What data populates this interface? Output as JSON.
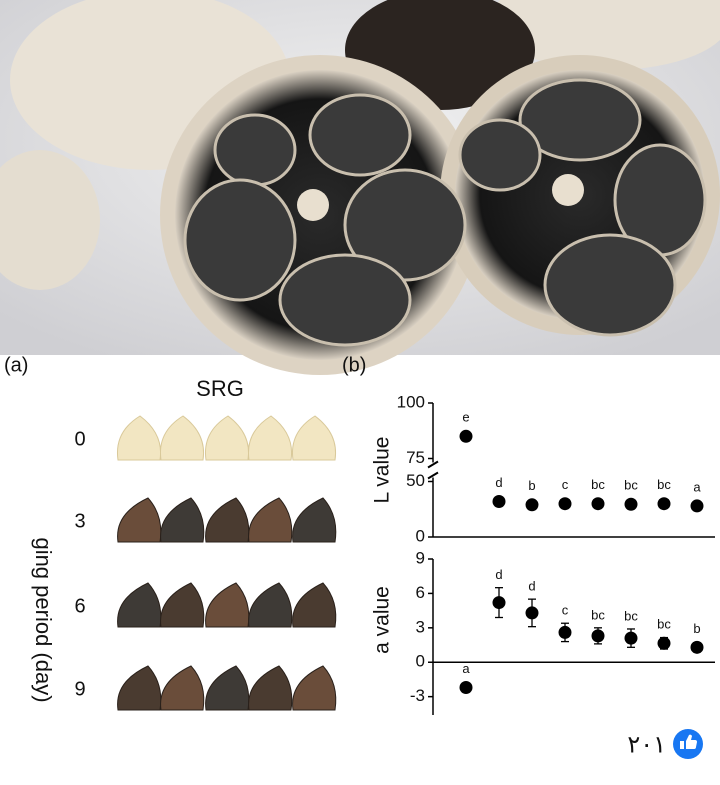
{
  "panel_a": {
    "label": "(a)",
    "title": "SRG",
    "y_axis_label": "ging period (day)",
    "rows": [
      "0",
      "3",
      "6",
      "9"
    ]
  },
  "panel_b": {
    "label": "(b)"
  },
  "chart_data": [
    {
      "type": "scatter",
      "y_axis_label": "L value",
      "categories": [
        null,
        null,
        null,
        null,
        null,
        null,
        null,
        null
      ],
      "values": [
        85,
        32,
        29,
        30,
        30,
        29.5,
        30,
        28
      ],
      "annotations": [
        "e",
        "d",
        "b",
        "c",
        "bc",
        "bc",
        "bc",
        "a"
      ],
      "color": "#000000",
      "ylim": [
        0,
        100
      ],
      "yticks": [
        0,
        50,
        75,
        100
      ],
      "axis_break": [
        50,
        75
      ]
    },
    {
      "type": "scatter",
      "y_axis_label": "a value",
      "categories": [
        null,
        null,
        null,
        null,
        null,
        null,
        null,
        null
      ],
      "values": [
        -2.2,
        5.2,
        4.3,
        2.6,
        2.3,
        2.1,
        1.65,
        1.3
      ],
      "errors": [
        0.3,
        1.3,
        1.2,
        0.8,
        0.7,
        0.8,
        0.5,
        0.4
      ],
      "annotations": [
        "a",
        "d",
        "d",
        "c",
        "bc",
        "bc",
        "bc",
        "b"
      ],
      "color": "#000000",
      "ylim": [
        -4.6,
        9
      ],
      "yticks": [
        -3,
        0,
        3,
        6,
        9
      ]
    }
  ],
  "reactions": {
    "count": "٢٠١"
  }
}
